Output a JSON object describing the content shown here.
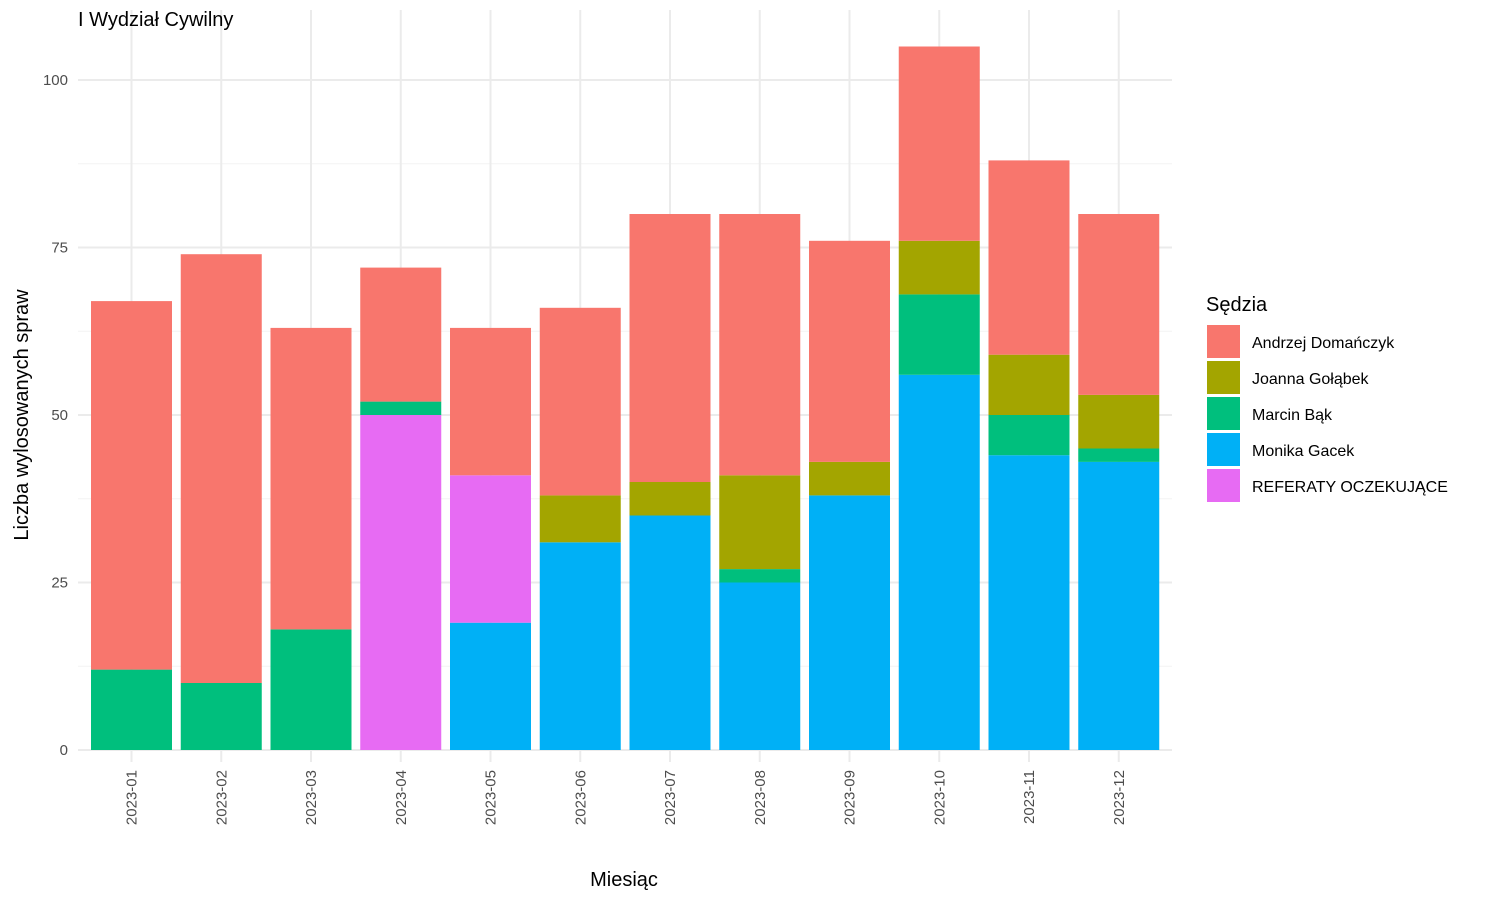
{
  "chart_data": {
    "type": "bar",
    "stacked": true,
    "title": "I Wydział Cywilny",
    "xlabel": "Miesiąc",
    "ylabel": "Liczba wylosowanych spraw",
    "ylim": [
      0,
      110
    ],
    "yticks": [
      0,
      25,
      50,
      75,
      100
    ],
    "grid": true,
    "legend": {
      "title": "Sędzia",
      "position": "right"
    },
    "categories": [
      "2023-01",
      "2023-02",
      "2023-03",
      "2023-04",
      "2023-05",
      "2023-06",
      "2023-07",
      "2023-08",
      "2023-09",
      "2023-10",
      "2023-11",
      "2023-12"
    ],
    "stack_order": [
      "Monika Gacek",
      "REFERATY OCZEKUJĄCE",
      "Marcin Bąk",
      "Joanna Gołąbek",
      "Andrzej Domańczyk"
    ],
    "series": [
      {
        "name": "Andrzej Domańczyk",
        "color": "#F8766D",
        "values": [
          55,
          64,
          45,
          20,
          22,
          28,
          40,
          39,
          33,
          29,
          29,
          27
        ]
      },
      {
        "name": "Joanna Gołąbek",
        "color": "#A3A500",
        "values": [
          0,
          0,
          0,
          0,
          0,
          7,
          5,
          14,
          5,
          8,
          9,
          8
        ]
      },
      {
        "name": "Marcin Bąk",
        "color": "#00BF7D",
        "values": [
          12,
          10,
          18,
          2,
          0,
          0,
          0,
          2,
          0,
          12,
          6,
          2
        ]
      },
      {
        "name": "Monika Gacek",
        "color": "#00B0F6",
        "values": [
          0,
          0,
          0,
          0,
          19,
          31,
          35,
          25,
          38,
          56,
          44,
          43
        ]
      },
      {
        "name": "REFERATY OCZEKUJĄCE",
        "color": "#E76BF3",
        "values": [
          0,
          0,
          0,
          50,
          22,
          0,
          0,
          0,
          0,
          0,
          0,
          0
        ]
      }
    ]
  }
}
